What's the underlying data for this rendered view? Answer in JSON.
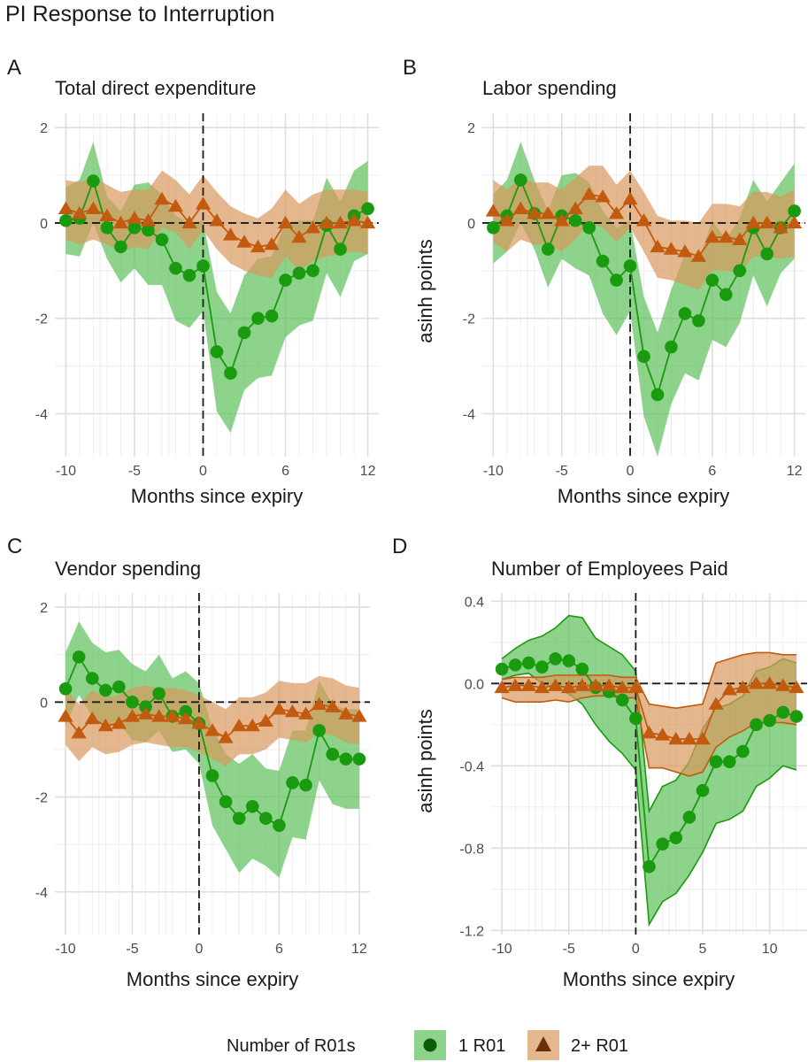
{
  "figure": {
    "title": "PI Response to Interruption"
  },
  "legend": {
    "title": "Number of R01s",
    "items": [
      {
        "label": "1 R01",
        "shape": "circle",
        "point_color": "#1a9a0f",
        "dark_color": "#0b5c06",
        "fill_color": "#5cc15a",
        "fill_opacity": 0.7
      },
      {
        "label": "2+ R01",
        "shape": "triangle",
        "point_color": "#c25b0f",
        "dark_color": "#6b3006",
        "fill_color": "#d8995e",
        "fill_opacity": 0.7
      }
    ]
  },
  "chart_data": [
    {
      "type": "line",
      "tag": "A",
      "title": "Total direct expenditure",
      "xlabel": "Months since expiry",
      "ylabel": "",
      "xlim": [
        -10.8,
        12.8
      ],
      "ylim": [
        -4.9,
        2.3
      ],
      "xticks": [
        -10,
        -5,
        0,
        6,
        12
      ],
      "yticks": [
        2,
        0,
        -2,
        -4
      ],
      "ytick_labels": [
        "2",
        "0",
        "-2",
        "-4"
      ],
      "x": [
        -10,
        -9,
        -8,
        -7,
        -6,
        -5,
        -4,
        -3,
        -2,
        -1,
        0,
        1,
        2,
        3,
        4,
        5,
        6,
        7,
        8,
        9,
        10,
        11,
        12
      ],
      "band_outline": false,
      "series": [
        {
          "name": "1 R01",
          "values": [
            0.05,
            0.1,
            0.88,
            -0.1,
            -0.5,
            -0.1,
            -0.15,
            -0.35,
            -0.95,
            -1.1,
            -0.9,
            -2.7,
            -3.15,
            -2.3,
            -2.0,
            -1.95,
            -1.2,
            -1.05,
            -1.0,
            -0.05,
            -0.55,
            0.15,
            0.3
          ],
          "lower": [
            -0.65,
            -0.7,
            0.0,
            -0.75,
            -1.25,
            -0.95,
            -1.3,
            -1.3,
            -2.05,
            -2.2,
            -1.85,
            -3.95,
            -4.4,
            -3.5,
            -3.25,
            -3.2,
            -2.4,
            -2.15,
            -2.05,
            -1.05,
            -1.55,
            -0.8,
            -0.65
          ],
          "upper": [
            0.75,
            0.9,
            1.7,
            0.55,
            0.25,
            0.8,
            0.85,
            0.6,
            0.15,
            0.0,
            0.05,
            -1.45,
            -1.9,
            -1.1,
            -0.75,
            -0.7,
            0.0,
            0.05,
            0.05,
            0.95,
            0.45,
            1.1,
            1.3
          ]
        },
        {
          "name": "2+ R01",
          "values": [
            0.3,
            0.2,
            0.3,
            0.15,
            0.0,
            0.1,
            0.05,
            0.5,
            0.35,
            0.0,
            0.4,
            0.05,
            -0.25,
            -0.4,
            -0.5,
            -0.45,
            0.0,
            -0.3,
            -0.1,
            0.0,
            0.0,
            0.05,
            0.0
          ],
          "lower": [
            -0.35,
            -0.45,
            -0.35,
            -0.45,
            -0.6,
            -0.5,
            -0.55,
            -0.1,
            -0.2,
            -0.55,
            -0.15,
            -0.55,
            -0.85,
            -1.0,
            -1.1,
            -1.15,
            -0.7,
            -1.0,
            -0.8,
            -0.7,
            -0.65,
            -0.6,
            -0.65
          ],
          "upper": [
            0.9,
            0.85,
            0.95,
            0.8,
            0.65,
            0.7,
            0.7,
            1.1,
            0.9,
            0.6,
            1.0,
            0.65,
            0.35,
            0.2,
            0.1,
            0.3,
            0.7,
            0.4,
            0.6,
            0.7,
            0.7,
            0.7,
            0.65
          ]
        }
      ]
    },
    {
      "type": "line",
      "tag": "B",
      "title": "Labor spending",
      "xlabel": "Months since expiry",
      "ylabel": "asinh points",
      "xlim": [
        -10.8,
        12.8
      ],
      "ylim": [
        -4.9,
        2.3
      ],
      "xticks": [
        -10,
        -5,
        0,
        6,
        12
      ],
      "yticks": [
        2,
        0,
        -2,
        -4
      ],
      "ytick_labels": [
        "2",
        "0",
        "-2",
        "-4"
      ],
      "x": [
        -10,
        -9,
        -8,
        -7,
        -6,
        -5,
        -4,
        -3,
        -2,
        -1,
        0,
        1,
        2,
        3,
        4,
        5,
        6,
        7,
        8,
        9,
        10,
        11,
        12
      ],
      "band_outline": false,
      "series": [
        {
          "name": "1 R01",
          "values": [
            -0.1,
            0.15,
            0.9,
            0.2,
            -0.55,
            0.15,
            0.05,
            -0.1,
            -0.8,
            -1.2,
            -0.9,
            -2.8,
            -3.6,
            -2.6,
            -1.9,
            -2.05,
            -1.2,
            -1.5,
            -1.0,
            -0.1,
            -0.65,
            -0.1,
            0.25
          ],
          "lower": [
            -0.85,
            -0.6,
            0.0,
            -0.55,
            -1.35,
            -0.75,
            -0.95,
            -1.1,
            -1.9,
            -2.35,
            -1.85,
            -4.05,
            -4.9,
            -3.8,
            -3.15,
            -3.3,
            -2.45,
            -2.6,
            -2.1,
            -1.1,
            -1.75,
            -1.05,
            -0.75
          ],
          "upper": [
            0.6,
            0.9,
            1.7,
            0.9,
            0.25,
            1.0,
            1.05,
            0.85,
            0.25,
            -0.1,
            0.05,
            -1.55,
            -2.3,
            -1.4,
            -0.65,
            -0.8,
            0.05,
            -0.35,
            0.1,
            0.9,
            0.45,
            0.85,
            1.25
          ]
        },
        {
          "name": "2+ R01",
          "values": [
            0.25,
            0.05,
            0.3,
            0.2,
            0.2,
            0.05,
            0.3,
            0.6,
            0.55,
            0.2,
            0.5,
            0.05,
            -0.5,
            -0.55,
            -0.6,
            -0.7,
            -0.3,
            -0.3,
            -0.35,
            0.0,
            0.0,
            -0.1,
            0.0
          ],
          "lower": [
            -0.4,
            -0.6,
            -0.35,
            -0.45,
            -0.45,
            -0.6,
            -0.35,
            0.0,
            -0.1,
            -0.4,
            -0.1,
            -0.6,
            -1.15,
            -1.2,
            -1.3,
            -1.4,
            -1.0,
            -1.0,
            -1.05,
            -0.7,
            -0.7,
            -0.75,
            -0.7
          ],
          "upper": [
            0.9,
            0.7,
            0.95,
            0.85,
            0.85,
            0.7,
            0.95,
            1.2,
            1.2,
            0.8,
            1.1,
            0.65,
            0.15,
            0.05,
            0.05,
            0.0,
            0.4,
            0.4,
            0.35,
            0.65,
            0.65,
            0.55,
            0.7
          ]
        }
      ]
    },
    {
      "type": "line",
      "tag": "C",
      "title": "Vendor spending",
      "xlabel": "Months since expiry",
      "ylabel": "",
      "xlim": [
        -10.8,
        12.8
      ],
      "ylim": [
        -4.9,
        2.3
      ],
      "xticks": [
        -10,
        -5,
        0,
        6,
        12
      ],
      "yticks": [
        2,
        0,
        -2,
        -4
      ],
      "ytick_labels": [
        "2",
        "0",
        "-2",
        "-4"
      ],
      "x": [
        -10,
        -9,
        -8,
        -7,
        -6,
        -5,
        -4,
        -3,
        -2,
        -1,
        0,
        1,
        2,
        3,
        4,
        5,
        6,
        7,
        8,
        9,
        10,
        11,
        12
      ],
      "band_outline": false,
      "series": [
        {
          "name": "1 R01",
          "values": [
            0.28,
            0.95,
            0.5,
            0.25,
            0.32,
            0.0,
            -0.1,
            0.18,
            -0.3,
            -0.2,
            -0.45,
            -1.55,
            -2.1,
            -2.45,
            -2.2,
            -2.45,
            -2.6,
            -1.7,
            -1.75,
            -0.6,
            -1.1,
            -1.2,
            -1.2
          ],
          "lower": [
            -0.5,
            0.15,
            -0.3,
            -0.55,
            -0.45,
            -0.8,
            -0.85,
            -0.6,
            -1.05,
            -1.0,
            -1.3,
            -2.6,
            -3.1,
            -3.6,
            -3.3,
            -3.45,
            -3.7,
            -2.85,
            -2.9,
            -1.65,
            -2.15,
            -2.25,
            -2.25
          ],
          "upper": [
            1.05,
            1.7,
            1.25,
            1.05,
            1.1,
            0.8,
            0.65,
            1.0,
            0.5,
            0.65,
            0.4,
            -0.55,
            -1.1,
            -1.3,
            -1.1,
            -1.4,
            -1.45,
            -0.6,
            -0.6,
            0.45,
            -0.05,
            -0.15,
            -0.15
          ]
        },
        {
          "name": "2+ R01",
          "values": [
            -0.3,
            -0.65,
            -0.35,
            -0.5,
            -0.45,
            -0.3,
            -0.25,
            -0.3,
            -0.3,
            -0.35,
            -0.45,
            -0.6,
            -0.75,
            -0.5,
            -0.5,
            -0.4,
            -0.15,
            -0.2,
            -0.25,
            -0.05,
            -0.1,
            -0.25,
            -0.3
          ],
          "lower": [
            -0.9,
            -1.25,
            -0.95,
            -1.1,
            -1.05,
            -0.9,
            -0.85,
            -0.9,
            -0.95,
            -0.95,
            -1.05,
            -1.2,
            -1.35,
            -1.1,
            -1.1,
            -1.0,
            -0.75,
            -0.8,
            -0.85,
            -0.65,
            -0.7,
            -0.85,
            -0.9
          ],
          "upper": [
            0.3,
            -0.05,
            0.25,
            0.1,
            0.15,
            0.3,
            0.35,
            0.3,
            0.3,
            0.25,
            0.15,
            0.0,
            -0.15,
            0.1,
            0.1,
            0.2,
            0.45,
            0.4,
            0.4,
            0.55,
            0.5,
            0.35,
            0.3
          ]
        }
      ]
    },
    {
      "type": "line",
      "tag": "D",
      "title": "Number of Employees Paid",
      "xlabel": "Months since expiry",
      "ylabel": "asinh points",
      "xlim": [
        -10.8,
        12.8
      ],
      "ylim": [
        -1.22,
        0.44
      ],
      "xticks": [
        -10,
        -5,
        0,
        5,
        10
      ],
      "yticks": [
        0.4,
        0.0,
        -0.4,
        -0.8,
        -1.2
      ],
      "ytick_labels": [
        "0.4",
        "0.0",
        "-0.4",
        "-0.8",
        "-1.2"
      ],
      "x": [
        -10,
        -9,
        -8,
        -7,
        -6,
        -5,
        -4,
        -3,
        -2,
        -1,
        0,
        1,
        2,
        3,
        4,
        5,
        6,
        7,
        8,
        9,
        10,
        11,
        12
      ],
      "band_outline": true,
      "series": [
        {
          "name": "1 R01",
          "values": [
            0.07,
            0.09,
            0.1,
            0.08,
            0.12,
            0.11,
            0.07,
            -0.02,
            -0.04,
            -0.08,
            -0.17,
            -0.89,
            -0.78,
            -0.75,
            -0.65,
            -0.52,
            -0.38,
            -0.38,
            -0.33,
            -0.2,
            -0.18,
            -0.14,
            -0.16
          ],
          "lower": [
            0.02,
            0.04,
            0.05,
            0.0,
            -0.02,
            -0.05,
            -0.1,
            -0.2,
            -0.28,
            -0.34,
            -0.42,
            -1.17,
            -1.06,
            -1.02,
            -0.93,
            -0.82,
            -0.68,
            -0.66,
            -0.62,
            -0.5,
            -0.46,
            -0.4,
            -0.42
          ],
          "upper": [
            0.12,
            0.17,
            0.21,
            0.23,
            0.27,
            0.33,
            0.32,
            0.22,
            0.18,
            0.14,
            0.06,
            -0.62,
            -0.5,
            -0.47,
            -0.38,
            -0.22,
            -0.12,
            -0.1,
            -0.06,
            0.06,
            0.08,
            0.12,
            0.1
          ]
        },
        {
          "name": "2+ R01",
          "values": [
            -0.02,
            -0.01,
            -0.01,
            -0.02,
            -0.01,
            -0.02,
            -0.01,
            -0.01,
            -0.01,
            -0.02,
            -0.02,
            -0.24,
            -0.25,
            -0.27,
            -0.27,
            -0.27,
            -0.1,
            -0.03,
            -0.02,
            0.0,
            0.0,
            -0.01,
            -0.02
          ],
          "lower": [
            -0.07,
            -0.09,
            -0.09,
            -0.09,
            -0.08,
            -0.09,
            -0.07,
            -0.06,
            -0.06,
            -0.07,
            -0.07,
            -0.41,
            -0.41,
            -0.43,
            -0.45,
            -0.43,
            -0.31,
            -0.26,
            -0.23,
            -0.19,
            -0.19,
            -0.19,
            -0.2
          ],
          "upper": [
            0.02,
            0.03,
            0.03,
            0.03,
            0.04,
            0.04,
            0.04,
            0.04,
            0.04,
            0.03,
            0.03,
            -0.1,
            -0.11,
            -0.12,
            -0.11,
            -0.1,
            0.1,
            0.12,
            0.14,
            0.15,
            0.15,
            0.14,
            0.14
          ]
        }
      ]
    }
  ]
}
